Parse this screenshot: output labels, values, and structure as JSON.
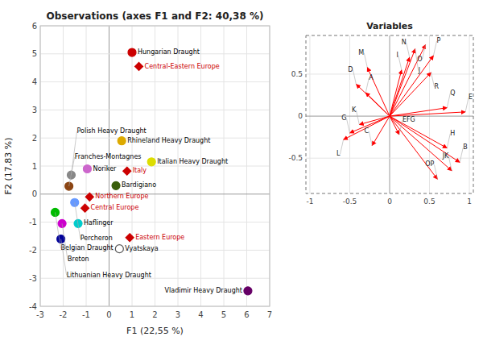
{
  "chart_data": [
    {
      "type": "scatter",
      "title": "Observations (axes F1 and F2: 40,38 %)",
      "xlabel": "F1 (22,55 %)",
      "ylabel": "F2 (17,83 %)",
      "xlim": [
        -3,
        7
      ],
      "ylim": [
        -4,
        6
      ],
      "xticks": [
        -3,
        -2,
        -1,
        0,
        1,
        2,
        3,
        4,
        5,
        6,
        7
      ],
      "yticks": [
        -4,
        -3,
        -2,
        -1,
        0,
        1,
        2,
        3,
        4,
        5,
        6
      ],
      "grid": true,
      "series": [
        {
          "marker": "circle",
          "labels": [
            "Hungarian Draught",
            "Rhineland Heavy Draught",
            "Italian Heavy Draught",
            "Noriker",
            "Bardigiano",
            "Polish Heavy Draught",
            "Franches-Montagnes",
            "Belgian Draught",
            "Percheron",
            "Breton",
            "Haflinger",
            "Lithuanian Heavy Draught",
            "Vyatskaya",
            "Vladimir Heavy Draught"
          ],
          "x": [
            1.0,
            0.55,
            1.85,
            -0.95,
            0.3,
            -1.65,
            -1.75,
            -2.35,
            -1.5,
            -2.05,
            -1.35,
            -2.1,
            0.45,
            6.05
          ],
          "values": [
            5.05,
            1.9,
            1.15,
            0.9,
            0.3,
            0.68,
            0.28,
            -0.65,
            -0.3,
            -1.05,
            -1.05,
            -1.6,
            -1.95,
            -3.45
          ],
          "colors": [
            "#cc0000",
            "#ddaa00",
            "#dddd00",
            "#cc66cc",
            "#3a5f0b",
            "#888888",
            "#8B4513",
            "#00bb00",
            "#6699ff",
            "#cc00cc",
            "#00cccc",
            "#000099",
            "#ffffff",
            "#660066"
          ]
        },
        {
          "marker": "diamond",
          "color": "#cc0000",
          "labels": [
            "Central-Eastern Europe",
            "Italy",
            "Northern Europe",
            "Central Europe",
            "Eastern Europe"
          ],
          "x": [
            1.3,
            0.78,
            -0.85,
            -1.05,
            0.9
          ],
          "values": [
            4.55,
            0.82,
            -0.1,
            -0.5,
            -1.55
          ]
        }
      ]
    },
    {
      "type": "vectors",
      "title": "Variables",
      "xlim": [
        -1.05,
        1.05
      ],
      "ylim": [
        -0.92,
        0.96
      ],
      "xticks": [
        -1,
        -0.5,
        0,
        0.5,
        1
      ],
      "yticks": [
        -0.5,
        0,
        0.5
      ],
      "grid": true,
      "color": "red",
      "labels": [
        "O",
        "J",
        "P",
        "N",
        "I",
        "R",
        "M",
        "D",
        "A",
        "Q",
        "E",
        "K",
        "G",
        "EFG",
        "L",
        "C",
        "H",
        "B",
        "JK",
        "OP"
      ],
      "x": [
        0.45,
        0.32,
        0.55,
        0.25,
        0.15,
        0.52,
        -0.28,
        -0.42,
        -0.3,
        0.72,
        0.95,
        -0.38,
        -0.5,
        0.12,
        -0.58,
        -0.22,
        0.72,
        0.88,
        0.78,
        0.6
      ],
      "values": [
        0.85,
        0.8,
        0.72,
        0.7,
        0.55,
        0.52,
        0.58,
        0.38,
        0.28,
        0.1,
        0.05,
        -0.1,
        -0.2,
        -0.22,
        -0.28,
        -0.35,
        -0.38,
        -0.55,
        -0.65,
        -0.75
      ]
    }
  ]
}
